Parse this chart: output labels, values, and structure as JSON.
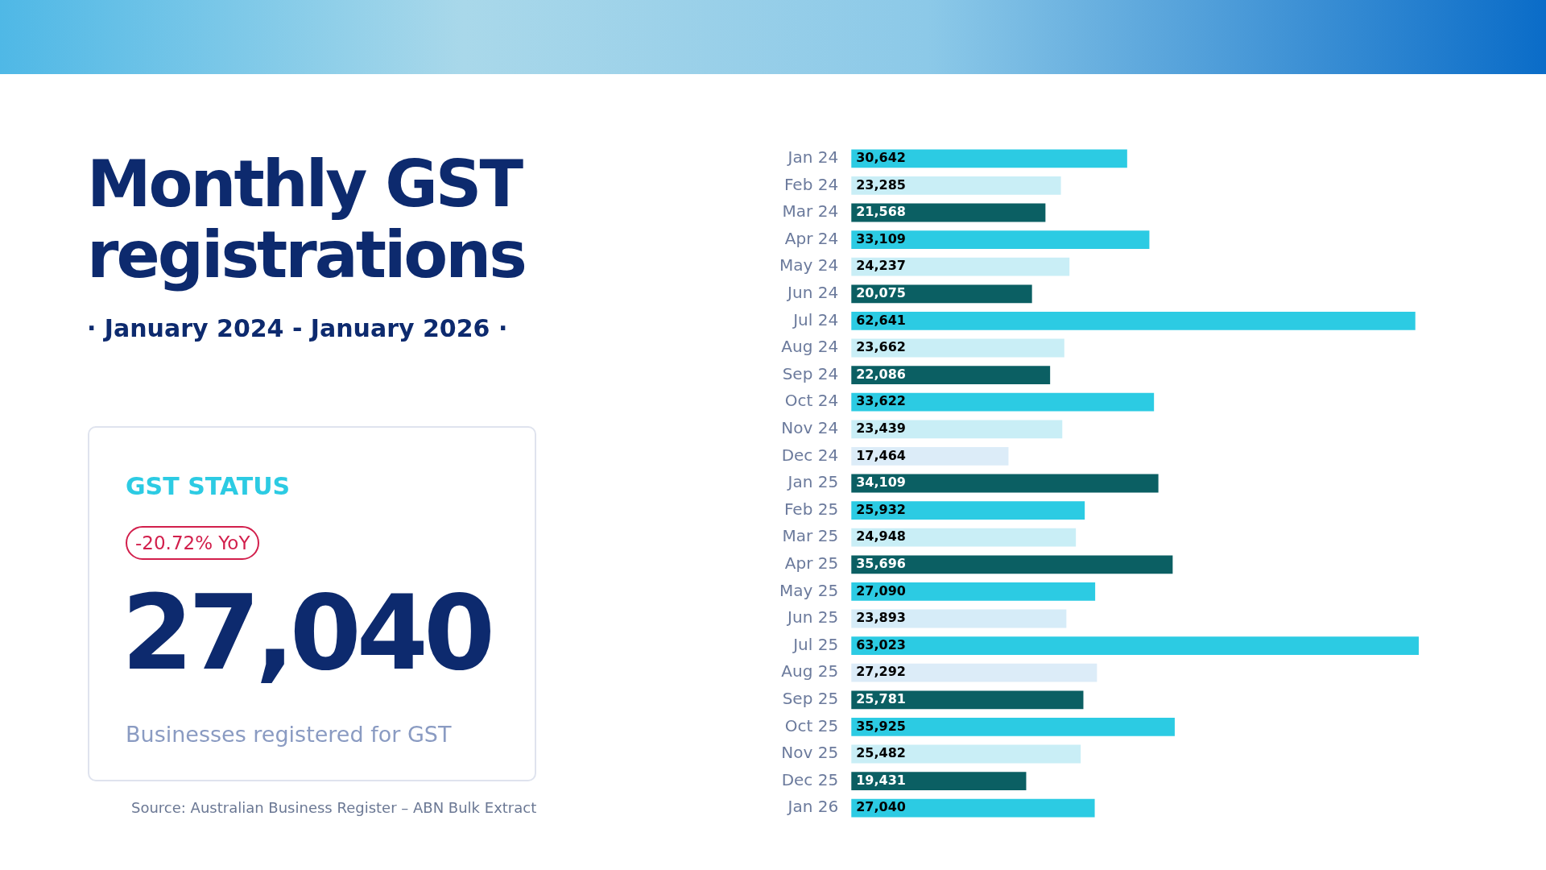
{
  "chart_data": {
    "type": "bar",
    "orientation": "horizontal",
    "title": "Monthly GST registrations",
    "subtitle": "· January 2024 - January 2026 ·",
    "categories": [
      "Jan 24",
      "Feb 24",
      "Mar 24",
      "Apr 24",
      "May 24",
      "Jun 24",
      "Jul 24",
      "Aug 24",
      "Sep 24",
      "Oct 24",
      "Nov 24",
      "Dec 24",
      "Jan 25",
      "Feb 25",
      "Mar 25",
      "Apr 25",
      "May 25",
      "Jun 25",
      "Jul 25",
      "Aug 25",
      "Sep 25",
      "Oct 25",
      "Nov 25",
      "Dec 25",
      "Jan 26"
    ],
    "values": [
      30642,
      23285,
      21568,
      33109,
      24237,
      20075,
      62641,
      23662,
      22086,
      33622,
      23439,
      17464,
      34109,
      25932,
      24948,
      35696,
      27090,
      23893,
      63023,
      27292,
      25781,
      35925,
      25482,
      19431,
      27040
    ],
    "colors": [
      "#2ccbe3",
      "#c9eef6",
      "#0b5f63",
      "#2ccbe3",
      "#c9eef6",
      "#0b5f63",
      "#2ccbe3",
      "#c9eef6",
      "#0b5f63",
      "#2ccbe3",
      "#c9eef6",
      "#dcecf8",
      "#0b5f63",
      "#2ccbe3",
      "#c9eef6",
      "#0b5f63",
      "#2ccbe3",
      "#d6ecf8",
      "#2ccbe3",
      "#dcecf8",
      "#0b5f63",
      "#2ccbe3",
      "#c9eef6",
      "#0b5f63",
      "#2ccbe3"
    ],
    "value_labels": [
      "30,642",
      "23,285",
      "21,568",
      "33,109",
      "24,237",
      "20,075",
      "62,641",
      "23,662",
      "22,086",
      "33,622",
      "23,439",
      "17,464",
      "34,109",
      "25,932",
      "24,948",
      "35,696",
      "27,090",
      "23,893",
      "63,023",
      "27,292",
      "25,781",
      "35,925",
      "25,482",
      "19,431",
      "27,040"
    ],
    "tick_labels": "y",
    "legend": false,
    "annotations": [
      "GST STATUS",
      "-20.72% YoY",
      "27,040",
      "Businesses registered for GST",
      "Source: Australian Business Register – ABN Bulk Extract"
    ]
  }
}
